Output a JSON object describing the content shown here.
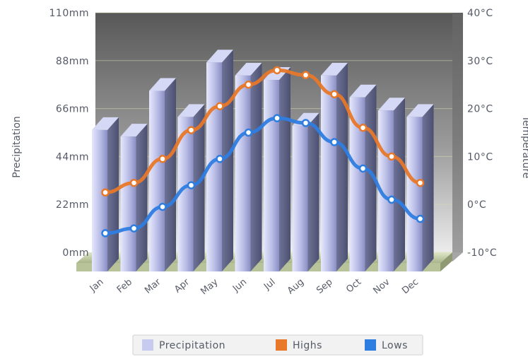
{
  "chart_data": {
    "type": "bar",
    "categories": [
      "Jan",
      "Feb",
      "Mar",
      "Apr",
      "May",
      "Jun",
      "Jul",
      "Aug",
      "Sep",
      "Oct",
      "Nov",
      "Dec"
    ],
    "series": [
      {
        "name": "Precipitation",
        "type": "bar",
        "axis": "left",
        "values": [
          62,
          59,
          80,
          68,
          93,
          87,
          85,
          64,
          87,
          77,
          71,
          68
        ]
      },
      {
        "name": "Highs",
        "type": "line",
        "axis": "right",
        "values": [
          2.5,
          4.5,
          9.5,
          15.5,
          20.5,
          25,
          28,
          27,
          23,
          16,
          10,
          4.5
        ]
      },
      {
        "name": "Lows",
        "type": "line",
        "axis": "right",
        "values": [
          -6,
          -5,
          -0.5,
          4,
          9.5,
          15,
          18,
          17,
          13,
          7.5,
          1,
          -3
        ]
      }
    ],
    "y_left": {
      "label": "Precipitation",
      "ticks": [
        "110mm",
        "88mm",
        "66mm",
        "44mm",
        "22mm",
        "0mm"
      ],
      "range": [
        0,
        110
      ]
    },
    "y_right": {
      "label": "Temperature",
      "ticks": [
        "40°C",
        "30°C",
        "20°C",
        "10°C",
        "0°C",
        "-10°C"
      ],
      "range": [
        -10,
        40
      ]
    },
    "legend_position": "bottom-center",
    "colors": {
      "precipitation": "#c8cbf0",
      "highs": "#e8782a",
      "lows": "#2e7de0",
      "backdrop_top": "#5a5a5a",
      "backdrop_bottom": "#e8e8e8",
      "floor": "#c8d4a8"
    }
  }
}
